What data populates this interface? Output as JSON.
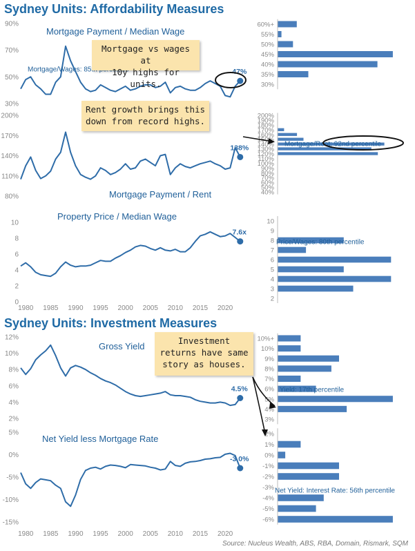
{
  "sections": {
    "affordability_title": "Sydney Units: Affordability Measures",
    "investment_title": "Sydney Units: Investment Measures"
  },
  "callouts": {
    "mortgage_wages": "Mortgage vs wages at\n10y highs for units.",
    "rent_growth": "Rent growth brings this\ndown from record highs.",
    "investment": "Investment\nreturns have same\nstory as houses."
  },
  "source": "Source: Nucleus Wealth, ABS, RBA, Domain, Rismark, SQM",
  "colors": {
    "line": "#2e6ca8",
    "bar": "#4a7ebb",
    "text": "#1f5f99",
    "axis": "#888888",
    "callout": "#fbe4ad"
  },
  "chart_data": [
    {
      "id": "mortgage-wage",
      "type": "line",
      "title": "Mortgage Payment / Median Wage",
      "x_ticks": [
        1980,
        1985,
        1990,
        1995,
        2000,
        2005,
        2010,
        2015,
        2020
      ],
      "xlim": [
        1979,
        2024
      ],
      "y_ticks": [
        "30%",
        "50%",
        "70%",
        "90%"
      ],
      "ylim": [
        30,
        90
      ],
      "end_label": "47%",
      "series": [
        {
          "x": [
            1979,
            1980,
            1981,
            1982,
            1983,
            1984,
            1985,
            1986,
            1987,
            1988,
            1989,
            1990,
            1991,
            1992,
            1993,
            1994,
            1995,
            1996,
            1997,
            1998,
            1999,
            2000,
            2001,
            2002,
            2003,
            2004,
            2005,
            2006,
            2007,
            2008,
            2009,
            2010,
            2011,
            2012,
            2013,
            2014,
            2015,
            2016,
            2017,
            2018,
            2019,
            2020,
            2021,
            2022,
            2023
          ],
          "y": [
            41,
            48,
            50,
            44,
            41,
            37,
            37,
            46,
            50,
            73,
            62,
            54,
            46,
            41,
            39,
            40,
            44,
            42,
            40,
            39,
            41,
            43,
            40,
            41,
            43,
            44,
            44,
            42,
            43,
            46,
            38,
            42,
            43,
            41,
            40,
            40,
            42,
            45,
            47,
            45,
            43,
            36,
            35,
            43,
            47
          ]
        }
      ]
    },
    {
      "id": "mortgage-rent",
      "type": "line",
      "title": "Mortgage Payment / Rent",
      "x_ticks": [
        1980,
        1985,
        1990,
        1995,
        2000,
        2005,
        2010,
        2015,
        2020
      ],
      "xlim": [
        1979,
        2024
      ],
      "y_ticks": [
        "80%",
        "110%",
        "140%",
        "170%",
        "200%"
      ],
      "ylim": [
        80,
        200
      ],
      "end_label": "138%",
      "series": [
        {
          "x": [
            1979,
            1980,
            1981,
            1982,
            1983,
            1984,
            1985,
            1986,
            1987,
            1988,
            1989,
            1990,
            1991,
            1992,
            1993,
            1994,
            1995,
            1996,
            1997,
            1998,
            1999,
            2000,
            2001,
            2002,
            2003,
            2004,
            2005,
            2006,
            2007,
            2008,
            2009,
            2010,
            2011,
            2012,
            2013,
            2014,
            2015,
            2016,
            2017,
            2018,
            2019,
            2020,
            2021,
            2022,
            2023
          ],
          "y": [
            105,
            125,
            138,
            118,
            106,
            110,
            117,
            135,
            145,
            175,
            145,
            125,
            112,
            108,
            105,
            110,
            122,
            118,
            112,
            115,
            120,
            128,
            120,
            122,
            132,
            135,
            130,
            125,
            140,
            142,
            112,
            122,
            128,
            124,
            122,
            125,
            128,
            130,
            132,
            128,
            125,
            120,
            122,
            152,
            138
          ]
        }
      ]
    },
    {
      "id": "price-wage",
      "type": "line",
      "title": "Property Price / Median Wage",
      "x_ticks": [
        1980,
        1985,
        1990,
        1995,
        2000,
        2005,
        2010,
        2015,
        2020
      ],
      "xlim": [
        1979,
        2024
      ],
      "y_ticks": [
        "0",
        "2",
        "4",
        "6",
        "8",
        "10"
      ],
      "ylim": [
        0,
        10
      ],
      "end_label": "7.6x",
      "series": [
        {
          "x": [
            1979,
            1980,
            1981,
            1982,
            1983,
            1984,
            1985,
            1986,
            1987,
            1988,
            1989,
            1990,
            1991,
            1992,
            1993,
            1994,
            1995,
            1996,
            1997,
            1998,
            1999,
            2000,
            2001,
            2002,
            2003,
            2004,
            2005,
            2006,
            2007,
            2008,
            2009,
            2010,
            2011,
            2012,
            2013,
            2014,
            2015,
            2016,
            2017,
            2018,
            2019,
            2020,
            2021,
            2022,
            2023
          ],
          "y": [
            4.5,
            4.9,
            4.4,
            3.7,
            3.4,
            3.3,
            3.2,
            3.6,
            4.4,
            5.0,
            4.6,
            4.4,
            4.5,
            4.5,
            4.6,
            4.9,
            5.2,
            5.1,
            5.1,
            5.5,
            5.8,
            6.2,
            6.5,
            6.9,
            7.1,
            7.0,
            6.7,
            6.5,
            6.8,
            6.5,
            6.4,
            6.6,
            6.3,
            6.3,
            6.8,
            7.6,
            8.3,
            8.5,
            8.8,
            8.5,
            8.2,
            8.3,
            8.6,
            8.1,
            7.6
          ]
        }
      ]
    },
    {
      "id": "gross-yield",
      "type": "line",
      "title": "Gross Yield",
      "x_ticks": [
        1980,
        1985,
        1990,
        1995,
        2000,
        2005,
        2010,
        2015,
        2020
      ],
      "xlim": [
        1979,
        2024
      ],
      "y_ticks": [
        "2%",
        "4%",
        "6%",
        "8%",
        "10%",
        "12%"
      ],
      "ylim": [
        2,
        12
      ],
      "end_label": "4.5%",
      "series": [
        {
          "x": [
            1979,
            1980,
            1981,
            1982,
            1983,
            1984,
            1985,
            1986,
            1987,
            1988,
            1989,
            1990,
            1991,
            1992,
            1993,
            1994,
            1995,
            1996,
            1997,
            1998,
            1999,
            2000,
            2001,
            2002,
            2003,
            2004,
            2005,
            2006,
            2007,
            2008,
            2009,
            2010,
            2011,
            2012,
            2013,
            2014,
            2015,
            2016,
            2017,
            2018,
            2019,
            2020,
            2021,
            2022,
            2023
          ],
          "y": [
            8.2,
            7.4,
            8.1,
            9.2,
            9.8,
            10.3,
            11.0,
            9.7,
            8.2,
            7.2,
            8.2,
            8.5,
            8.3,
            8.0,
            7.6,
            7.3,
            6.9,
            6.6,
            6.4,
            6.1,
            5.7,
            5.3,
            5.0,
            4.8,
            4.7,
            4.8,
            4.9,
            5.0,
            5.1,
            5.3,
            4.9,
            4.8,
            4.8,
            4.7,
            4.6,
            4.3,
            4.1,
            4.0,
            3.9,
            3.9,
            4.0,
            3.9,
            3.6,
            3.7,
            4.5
          ]
        }
      ]
    },
    {
      "id": "net-yield",
      "type": "line",
      "title": "Net Yield less Mortgage Rate",
      "x_ticks": [
        1980,
        1985,
        1990,
        1995,
        2000,
        2005,
        2010,
        2015,
        2020
      ],
      "xlim": [
        1979,
        2024
      ],
      "y_ticks": [
        "-15%",
        "-10%",
        "-5%",
        "0%",
        "5%"
      ],
      "ylim": [
        -15,
        5
      ],
      "end_label": "-3.0%",
      "series": [
        {
          "x": [
            1979,
            1980,
            1981,
            1982,
            1983,
            1984,
            1985,
            1986,
            1987,
            1988,
            1989,
            1990,
            1991,
            1992,
            1993,
            1994,
            1995,
            1996,
            1997,
            1998,
            1999,
            2000,
            2001,
            2002,
            2003,
            2004,
            2005,
            2006,
            2007,
            2008,
            2009,
            2010,
            2011,
            2012,
            2013,
            2014,
            2015,
            2016,
            2017,
            2018,
            2019,
            2020,
            2021,
            2022,
            2023
          ],
          "y": [
            -4.0,
            -6.5,
            -7.5,
            -6.2,
            -5.4,
            -5.6,
            -5.8,
            -6.8,
            -7.5,
            -10.5,
            -11.5,
            -9.0,
            -5.5,
            -3.5,
            -3.0,
            -2.8,
            -3.2,
            -2.6,
            -2.3,
            -2.4,
            -2.6,
            -2.9,
            -2.2,
            -2.3,
            -2.4,
            -2.5,
            -2.8,
            -3.0,
            -3.4,
            -3.2,
            -1.5,
            -2.4,
            -2.6,
            -1.9,
            -1.6,
            -1.5,
            -1.3,
            -1.0,
            -0.9,
            -0.7,
            -0.6,
            0.1,
            0.3,
            -0.2,
            -3.0
          ]
        }
      ]
    },
    {
      "id": "hist-mortgage-wage",
      "type": "bar",
      "orientation": "horizontal",
      "categories": [
        "60%+",
        "55%",
        "50%",
        "45%",
        "40%",
        "35%",
        "30%"
      ],
      "values": [
        5,
        1,
        4,
        30,
        26,
        8,
        0
      ],
      "xlim": [
        0,
        32
      ],
      "annotation": "Mortgage/Wages: 85th percentile"
    },
    {
      "id": "hist-mortgage-rent",
      "type": "bar",
      "orientation": "horizontal",
      "categories": [
        "200%",
        "190%",
        "180%",
        "170%",
        "160%",
        "150%",
        "140%",
        "130%",
        "120%",
        "110%",
        "100%",
        "90%",
        "80%",
        "70%",
        "60%",
        "50%",
        "40%"
      ],
      "values": [
        0,
        0,
        0,
        2,
        6,
        8,
        33,
        29,
        31,
        0,
        0,
        0,
        0,
        0,
        0,
        0,
        0
      ],
      "xlim": [
        0,
        38
      ],
      "annotation": "Mortgage/Rent: 92nd percentile"
    },
    {
      "id": "hist-price-wage",
      "type": "bar",
      "orientation": "horizontal",
      "categories": [
        "10",
        "9",
        "8",
        "7",
        "6",
        "5",
        "4",
        "3",
        "2"
      ],
      "values": [
        0,
        0,
        7,
        3,
        12,
        7,
        12,
        8,
        0
      ],
      "xlim": [
        0,
        13
      ],
      "annotation": "Price/Wages: 80th percentile"
    },
    {
      "id": "hist-yield",
      "type": "bar",
      "orientation": "horizontal",
      "categories": [
        "10%+",
        "10%",
        "9%",
        "8%",
        "7%",
        "6%",
        "5%",
        "4%",
        "3%"
      ],
      "values": [
        3,
        3,
        8,
        7,
        3,
        5,
        15,
        9,
        0
      ],
      "xlim": [
        0,
        16
      ],
      "annotation": "Yield: 17th percentile"
    },
    {
      "id": "hist-net-yield",
      "type": "bar",
      "orientation": "horizontal",
      "categories": [
        "2%",
        "1%",
        "0%",
        "-1%",
        "-2%",
        "-3%",
        "-4%",
        "-5%",
        "-6%"
      ],
      "values": [
        0,
        3,
        1,
        8,
        8,
        0,
        6,
        5,
        15
      ],
      "xlim": [
        0,
        16
      ],
      "annotation": "Net Yield: Interest Rate: 56th percentile"
    }
  ]
}
